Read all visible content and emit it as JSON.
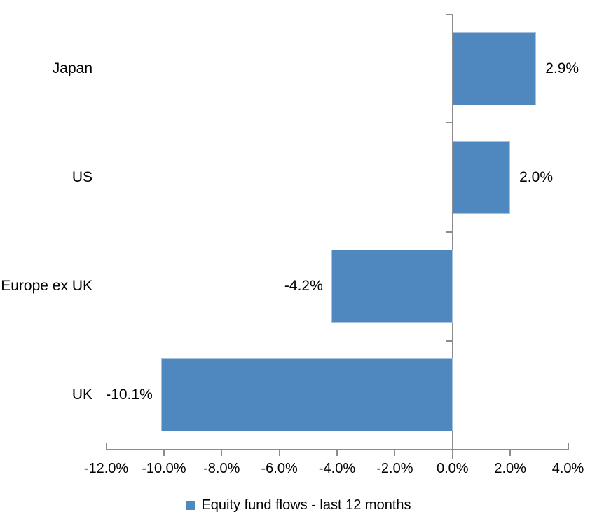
{
  "chart_data": {
    "type": "bar",
    "orientation": "horizontal",
    "title": "",
    "xlabel": "",
    "ylabel": "",
    "categories": [
      "Japan",
      "US",
      "Europe ex UK",
      "UK"
    ],
    "series": [
      {
        "name": "Equity fund flows - last 12 months",
        "values": [
          2.9,
          2.0,
          -4.2,
          -10.1
        ],
        "value_labels": [
          "2.9%",
          "2.0%",
          "-4.2%",
          "-10.1%"
        ],
        "color": "#4E88BE",
        "edge_color": "#A6C2DC"
      }
    ],
    "xlim": [
      -12,
      4
    ],
    "x_ticks": [
      {
        "value": -12,
        "label": "-12.0%"
      },
      {
        "value": -10,
        "label": "-10.0%"
      },
      {
        "value": -8,
        "label": "-8.0%"
      },
      {
        "value": -6,
        "label": "-6.0%"
      },
      {
        "value": -4,
        "label": "-4.0%"
      },
      {
        "value": -2,
        "label": "-2.0%"
      },
      {
        "value": 0,
        "label": "0.0%"
      },
      {
        "value": 2,
        "label": "2.0%"
      },
      {
        "value": 4,
        "label": "4.0%"
      }
    ],
    "grid": false,
    "legend_position": "bottom",
    "axis_color": "#8C8C8C",
    "text_color": "#000000"
  }
}
